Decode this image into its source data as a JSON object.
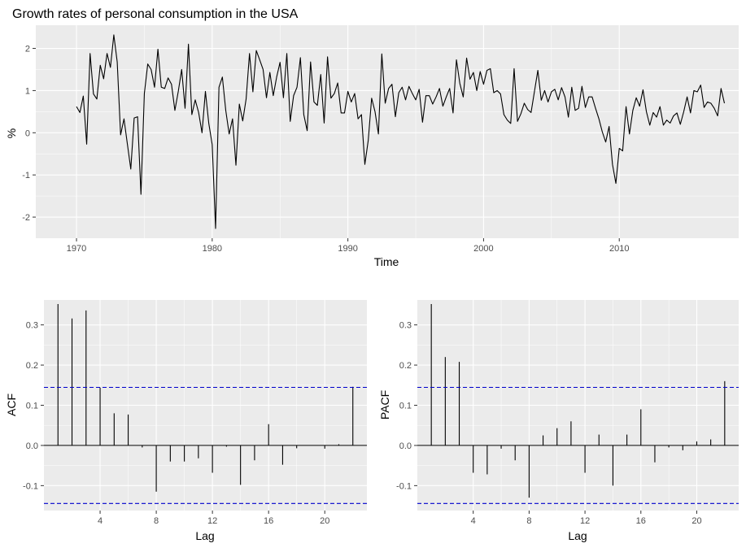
{
  "colors": {
    "panel_bg": "#ebebeb",
    "grid_major": "#ffffff",
    "line": "#000000",
    "conf_band": "#0000cc",
    "tick_text": "#4d4d4d"
  },
  "chart_data": [
    {
      "type": "line",
      "title": "Growth rates of personal consumption in the USA",
      "xlabel": "Time",
      "ylabel": "%",
      "xlim": [
        1967.2,
        1985.8
      ],
      "ylim": [
        -2.5,
        2.55
      ],
      "x_ticks": [
        1970,
        1980,
        1990,
        2000,
        2010
      ],
      "x_tick_labels": [
        "1970",
        "1980",
        "1990",
        "2000",
        "2010"
      ],
      "y_ticks": [
        -2,
        -1,
        0,
        1,
        2
      ],
      "y_tick_labels": [
        "-2",
        "-1",
        "0",
        "1",
        "2"
      ],
      "grid": true,
      "series": [
        {
          "start": 1970.0,
          "step": 0.25,
          "values": [
            0.62,
            0.48,
            0.87,
            -0.27,
            1.88,
            0.92,
            0.8,
            1.6,
            1.28,
            1.88,
            1.55,
            2.32,
            1.68,
            -0.05,
            0.33,
            -0.27,
            -0.86,
            0.35,
            0.38,
            -1.46,
            0.93,
            1.63,
            1.5,
            1.08,
            1.98,
            1.08,
            1.05,
            1.3,
            1.15,
            0.53,
            0.98,
            1.5,
            0.58,
            2.1,
            0.43,
            0.78,
            0.48,
            0.0,
            0.98,
            0.22,
            -0.28,
            -2.27,
            1.08,
            1.32,
            0.53,
            -0.03,
            0.33,
            -0.77,
            0.68,
            0.28,
            0.8,
            1.88,
            0.97,
            1.95,
            1.73,
            1.5,
            0.83,
            1.43,
            0.88,
            1.32,
            1.67,
            0.83,
            1.88,
            0.27,
            0.88,
            1.08,
            1.78,
            0.43,
            0.05,
            1.68,
            0.73,
            0.65,
            1.38,
            0.23,
            1.8,
            0.82,
            0.93,
            1.18,
            0.47,
            0.47,
            0.98,
            0.73,
            0.93,
            0.33,
            0.43,
            -0.75,
            -0.18,
            0.82,
            0.5,
            -0.03,
            1.87,
            0.7,
            1.05,
            1.15,
            0.38,
            0.95,
            1.08,
            0.78,
            1.1,
            0.93,
            0.78,
            1.03,
            0.25,
            0.88,
            0.88,
            0.68,
            0.85,
            1.05,
            0.63,
            0.85,
            1.05,
            0.47,
            1.73,
            1.17,
            0.85,
            1.77,
            1.27,
            1.43,
            1.0,
            1.45,
            1.15,
            1.48,
            1.52,
            0.95,
            1.0,
            0.92,
            0.43,
            0.3,
            0.22,
            1.52,
            0.27,
            0.45,
            0.7,
            0.55,
            0.48,
            0.98,
            1.48,
            0.77,
            1.0,
            0.73,
            0.97,
            1.03,
            0.78,
            1.07,
            0.85,
            0.37,
            1.08,
            0.53,
            0.58,
            1.1,
            0.6,
            0.85,
            0.85,
            0.58,
            0.33,
            0.02,
            -0.22,
            0.15,
            -0.75,
            -1.2,
            -0.37,
            -0.43,
            0.62,
            -0.03,
            0.53,
            0.83,
            0.63,
            1.02,
            0.5,
            0.18,
            0.48,
            0.37,
            0.62,
            0.18,
            0.3,
            0.23,
            0.4,
            0.47,
            0.2,
            0.5,
            0.85,
            0.47,
            1.0,
            0.97,
            1.13,
            0.6,
            0.73,
            0.7,
            0.58,
            0.4,
            1.05,
            0.7
          ]
        }
      ]
    },
    {
      "type": "bar",
      "xlabel": "Lag",
      "ylabel": "ACF",
      "xlim": [
        0,
        23
      ],
      "ylim": [
        -0.162,
        0.362
      ],
      "x_ticks": [
        4,
        8,
        12,
        16,
        20
      ],
      "x_tick_labels": [
        "4",
        "8",
        "12",
        "16",
        "20"
      ],
      "y_ticks": [
        -0.1,
        0,
        0.1,
        0.2,
        0.3
      ],
      "y_tick_labels": [
        "-0.1",
        "0.0",
        "0.1",
        "0.2",
        "0.3"
      ],
      "grid": true,
      "lags": [
        1,
        2,
        3,
        4,
        5,
        6,
        7,
        8,
        9,
        10,
        11,
        12,
        13,
        14,
        15,
        16,
        17,
        18,
        19,
        20,
        21,
        22
      ],
      "values": [
        0.352,
        0.316,
        0.336,
        0.144,
        0.08,
        0.077,
        -0.005,
        -0.115,
        -0.04,
        -0.04,
        -0.032,
        -0.068,
        -0.003,
        -0.098,
        -0.037,
        0.053,
        -0.048,
        -0.007,
        0.0,
        -0.008,
        0.003,
        0.146
      ],
      "confidence_bound": 0.1445
    },
    {
      "type": "bar",
      "xlabel": "Lag",
      "ylabel": "PACF",
      "xlim": [
        0,
        23
      ],
      "ylim": [
        -0.162,
        0.362
      ],
      "x_ticks": [
        4,
        8,
        12,
        16,
        20
      ],
      "x_tick_labels": [
        "4",
        "8",
        "12",
        "16",
        "20"
      ],
      "y_ticks": [
        -0.1,
        0,
        0.1,
        0.2,
        0.3
      ],
      "y_tick_labels": [
        "-0.1",
        "0.0",
        "0.1",
        "0.2",
        "0.3"
      ],
      "grid": true,
      "lags": [
        1,
        2,
        3,
        4,
        5,
        6,
        7,
        8,
        9,
        10,
        11,
        12,
        13,
        14,
        15,
        16,
        17,
        18,
        19,
        20,
        21,
        22
      ],
      "values": [
        0.352,
        0.22,
        0.208,
        -0.068,
        -0.072,
        -0.008,
        -0.037,
        -0.13,
        0.025,
        0.043,
        0.06,
        -0.068,
        0.027,
        -0.1,
        0.027,
        0.09,
        -0.042,
        -0.005,
        -0.012,
        0.01,
        0.015,
        0.16
      ],
      "confidence_bound": 0.1445
    }
  ]
}
